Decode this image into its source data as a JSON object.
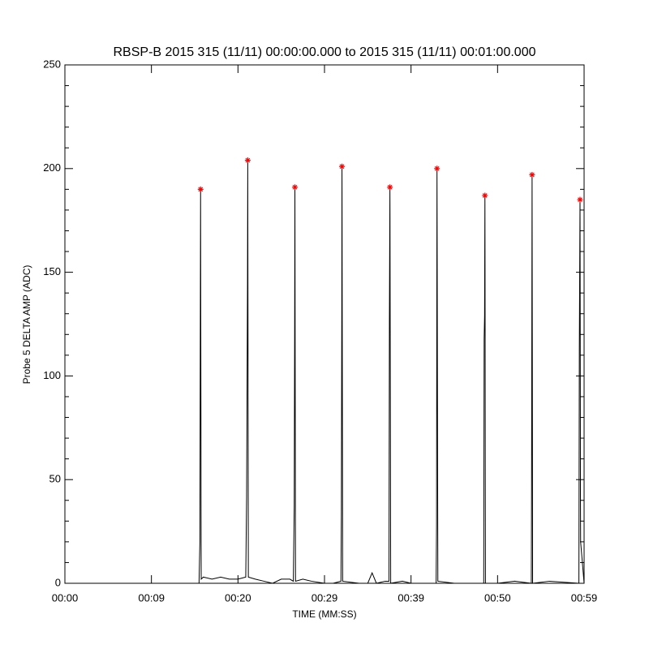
{
  "chart_data": {
    "type": "line",
    "title": "RBSP-B 2015 315 (11/11) 00:00:00.000 to 2015 315 (11/11) 00:01:00.000",
    "x_label": "TIME (MM:SS)",
    "y_label": "Probe 5 DELTA AMP (ADC)",
    "xlim": [
      0,
      60
    ],
    "ylim": [
      0,
      250
    ],
    "xticks": [
      {
        "value": 0,
        "label": "00:00"
      },
      {
        "value": 10,
        "label": "00:09"
      },
      {
        "value": 20,
        "label": "00:20"
      },
      {
        "value": 30,
        "label": "00:29"
      },
      {
        "value": 40,
        "label": "00:39"
      },
      {
        "value": 50,
        "label": "00:50"
      },
      {
        "value": 60,
        "label": "00:59"
      }
    ],
    "yticks": [
      0,
      50,
      100,
      150,
      200,
      250
    ],
    "y_minor_intervals": 5,
    "series": [
      {
        "color": "#000000",
        "x": [
          0,
          15.5,
          15.6,
          15.68,
          15.75,
          16,
          17,
          18,
          19,
          20,
          20.9,
          21.0,
          21.1,
          21.13,
          21.2,
          22,
          23,
          24,
          25,
          26,
          26.4,
          26.5,
          26.55,
          26.58,
          26.65,
          27.5,
          28.5,
          30,
          31,
          31.9,
          31.95,
          32.0,
          32.02,
          32.1,
          34,
          35,
          35.5,
          36,
          37,
          37.45,
          37.5,
          37.56,
          37.65,
          39,
          40,
          42.9,
          42.95,
          42.98,
          43.0,
          43.1,
          45,
          48.4,
          48.45,
          48.5,
          48.54,
          48.6,
          50,
          52,
          53.9,
          53.93,
          53.96,
          53.99,
          54.05,
          56,
          59.4,
          59.45,
          59.53,
          59.58,
          59.6,
          60
        ],
        "values": [
          0,
          0,
          20,
          190,
          2,
          3,
          2,
          3,
          2,
          2,
          3,
          42,
          144,
          204,
          3,
          2,
          1,
          0,
          2,
          2,
          1,
          37,
          120,
          191,
          1,
          2,
          1,
          0,
          0,
          1,
          34,
          134,
          201,
          1,
          0,
          0,
          5,
          0,
          1,
          1,
          126,
          191,
          0,
          1,
          0,
          0,
          28,
          139,
          200,
          1,
          0,
          0,
          118,
          129,
          187,
          0,
          0,
          1,
          0,
          46,
          122,
          197,
          0,
          1,
          0,
          113,
          185,
          41,
          20,
          0
        ]
      },
      {
        "color": "#ff0000",
        "marker": "asterisk",
        "x": [
          15.68,
          21.13,
          26.58,
          32.02,
          37.56,
          43.0,
          48.54,
          53.99,
          59.53
        ],
        "values": [
          190,
          204,
          191,
          201,
          191,
          200,
          187,
          197,
          185
        ]
      }
    ]
  }
}
